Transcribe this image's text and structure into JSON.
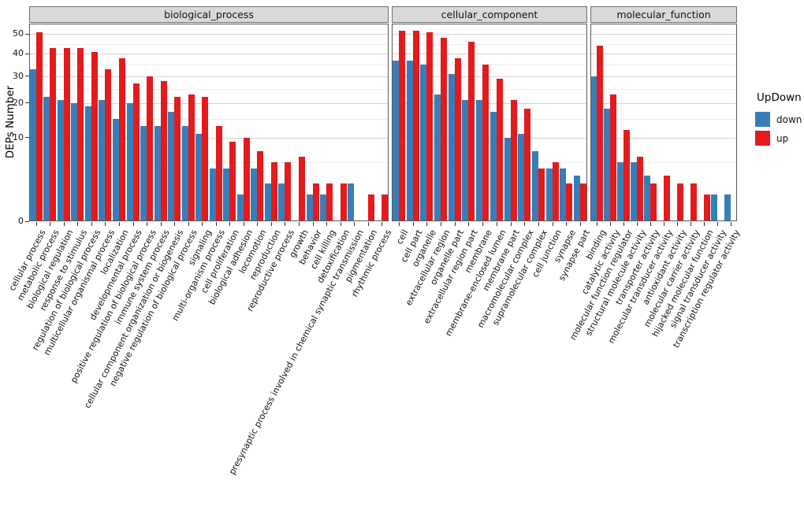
{
  "chart_data": {
    "type": "bar",
    "title": "",
    "ylabel": "DEPs Number",
    "y_scale": "sqrt",
    "y_ticks": [
      0,
      10,
      20,
      30,
      40,
      50
    ],
    "y_minor_ticks": [
      5,
      15,
      25,
      35,
      45
    ],
    "ylim": [
      0,
      55
    ],
    "grid": true,
    "legend": {
      "title": "UpDown",
      "position": "right",
      "items": [
        {
          "label": "down",
          "color": "#377EB8"
        },
        {
          "label": "up",
          "color": "#E41A1C"
        }
      ]
    },
    "facets": [
      {
        "label": "biological_process",
        "categories": [
          "cellular process",
          "metabolic process",
          "biological regulation",
          "response to stimulus",
          "regulation of biological process",
          "multicellular organismal process",
          "localization",
          "developmental process",
          "positive regulation of biological process",
          "immune system process",
          "cellular component organization or biogenesis",
          "negative regulation of biological process",
          "signaling",
          "multi-organism process",
          "cell proliferation",
          "biological adhesion",
          "locomotion",
          "reproduction",
          "reproductive process",
          "growth",
          "behavior",
          "cell killing",
          "detoxification",
          "presynaptic process involved in chemical synaptic transmission",
          "pigmentation",
          "rhythmic process"
        ],
        "series": [
          {
            "name": "down",
            "values": [
              33,
              22,
              21,
              20,
              19,
              21,
              15,
              20,
              13,
              13,
              17,
              13,
              11,
              4,
              4,
              1,
              4,
              2,
              2,
              0,
              1,
              1,
              0,
              2,
              0,
              0
            ]
          },
          {
            "name": "up",
            "values": [
              51,
              43,
              43,
              43,
              41,
              33,
              38,
              27,
              30,
              28,
              22,
              23,
              22,
              13,
              9,
              10,
              7,
              5,
              5,
              6,
              2,
              2,
              2,
              0,
              1,
              1
            ]
          }
        ]
      },
      {
        "label": "cellular_component",
        "categories": [
          "cell",
          "cell part",
          "organelle",
          "extracellular region",
          "organelle part",
          "extracellular region part",
          "membrane",
          "membrane-enclosed lumen",
          "membrane part",
          "macromolecular complex",
          "supramolecular complex",
          "cell junction",
          "synapse",
          "synapse part"
        ],
        "series": [
          {
            "name": "down",
            "values": [
              37,
              37,
              35,
              23,
              31,
              21,
              21,
              17,
              10,
              11,
              7,
              4,
              4,
              3
            ]
          },
          {
            "name": "up",
            "values": [
              52,
              52,
              51,
              48,
              38,
              46,
              35,
              29,
              21,
              18,
              4,
              5,
              2,
              2
            ]
          }
        ]
      },
      {
        "label": "molecular_function",
        "categories": [
          "binding",
          "catalytic activity",
          "molecular function regulator",
          "structural molecule activity",
          "transporter activity",
          "molecular transducer activity",
          "antioxidant activity",
          "molecular carrier activity",
          "hijacked molecular function",
          "signal transducer activity",
          "transcription regulator activity"
        ],
        "series": [
          {
            "name": "down",
            "values": [
              30,
              18,
              5,
              5,
              3,
              0,
              0,
              0,
              0,
              1,
              1
            ]
          },
          {
            "name": "up",
            "values": [
              44,
              23,
              12,
              6,
              2,
              3,
              2,
              2,
              1,
              0,
              0
            ]
          }
        ]
      }
    ]
  }
}
